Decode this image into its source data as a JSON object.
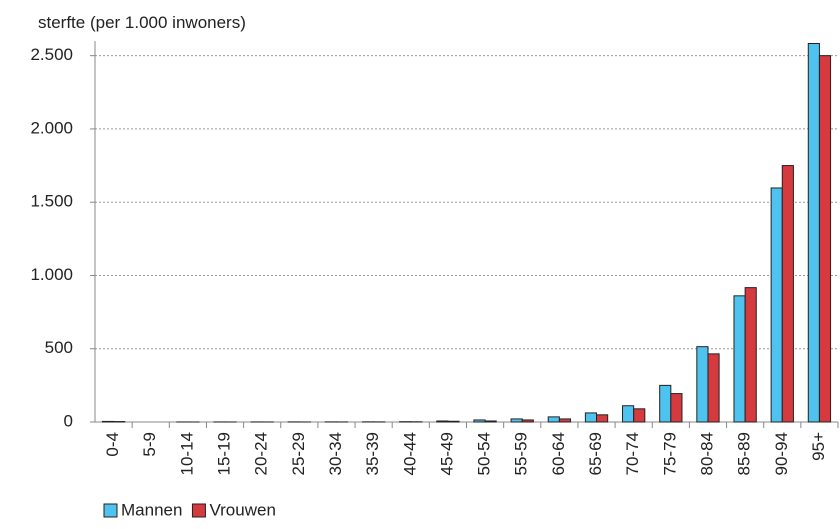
{
  "chart_data": {
    "type": "bar",
    "title": "sterfte (per 1.000 inwoners)",
    "categories": [
      "0-4",
      "5-9",
      "10-14",
      "15-19",
      "20-24",
      "25-29",
      "30-34",
      "35-39",
      "40-44",
      "45-49",
      "50-54",
      "55-59",
      "60-64",
      "65-69",
      "70-74",
      "75-79",
      "80-84",
      "85-89",
      "90-94",
      "95+"
    ],
    "series": [
      {
        "name": "Mannen",
        "color": "#4fc3ef",
        "values": [
          4,
          0,
          0.3,
          0.5,
          0.6,
          0.7,
          0.8,
          1,
          2,
          7,
          14,
          21,
          35,
          62,
          111,
          250,
          514,
          861,
          1597,
          2583
        ]
      },
      {
        "name": "Vrouwen",
        "color": "#d43a3e",
        "values": [
          3,
          0,
          0.2,
          0.3,
          0.3,
          0.3,
          0.5,
          0.8,
          1.5,
          5,
          7,
          14,
          21,
          49,
          90,
          194,
          465,
          917,
          1750,
          2500
        ]
      }
    ],
    "ylim": [
      0,
      2600
    ],
    "yticks": [
      0,
      500,
      {
        "value": 1000,
        "label": "1.000"
      },
      {
        "value": 1500,
        "label": "1.500"
      },
      {
        "value": 2000,
        "label": "2.000"
      },
      {
        "value": 2500,
        "label": "2.500"
      }
    ],
    "grid": true,
    "legend": "bottom-left"
  }
}
